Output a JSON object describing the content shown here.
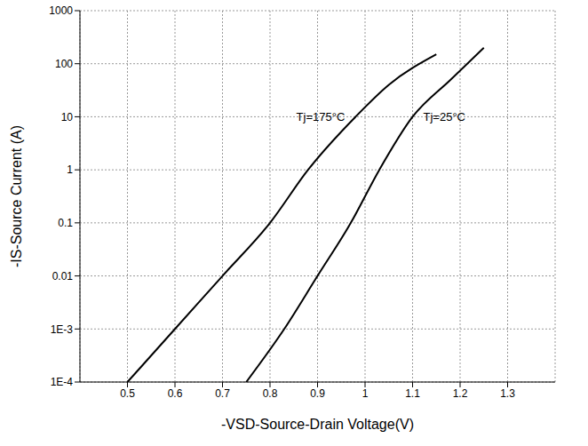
{
  "chart_data": {
    "type": "line",
    "x_label": "-VSD-Source-Drain Voltage(V)",
    "y_label": "-IS-Source Current (A)",
    "log": "y",
    "grid": true,
    "xlim": [
      0.4,
      1.4
    ],
    "xticks": [
      0.5,
      0.6,
      0.7,
      0.8,
      0.9,
      1.0,
      1.1,
      1.2,
      1.3
    ],
    "ylim": [
      0.0001,
      1000
    ],
    "yticks": [
      {
        "value": 0.0001,
        "label": "1E-4"
      },
      {
        "value": 0.001,
        "label": "1E-3"
      },
      0.01,
      0.1,
      1,
      10,
      100,
      1000
    ],
    "series": [
      {
        "name": "Tj=175°C",
        "color": "#000000",
        "line_style": "solid",
        "x": [
          0.5,
          0.6,
          0.7,
          0.8,
          0.88,
          0.98,
          1.05,
          1.15
        ],
        "values": [
          0.0001,
          0.001,
          0.01,
          0.1,
          1,
          10,
          40,
          150
        ]
      },
      {
        "name": "Tj=25°C",
        "color": "#000000",
        "line_style": "solid",
        "x": [
          0.75,
          0.83,
          0.9,
          0.97,
          1.03,
          1.1,
          1.18,
          1.25
        ],
        "values": [
          0.0001,
          0.001,
          0.01,
          0.1,
          1,
          10,
          50,
          200
        ]
      }
    ]
  }
}
